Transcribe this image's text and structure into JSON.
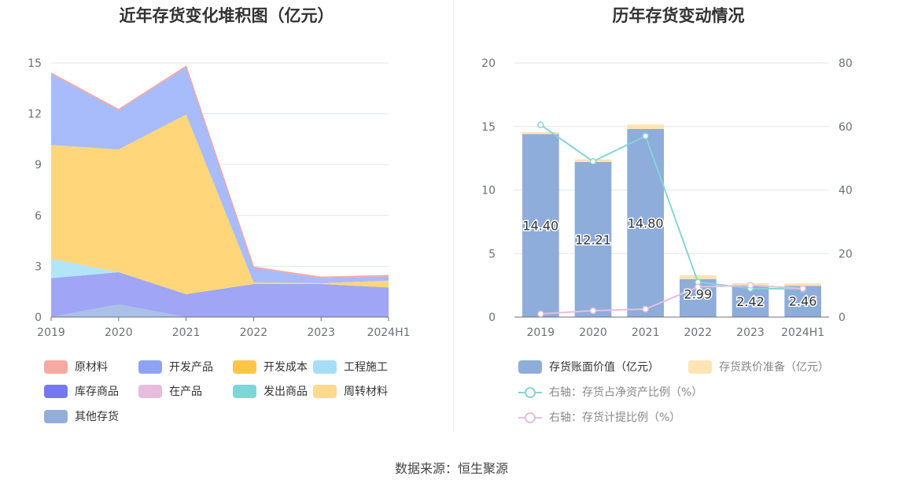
{
  "left": {
    "title": "近年存货变化堆积图（亿元）",
    "chart_data": {
      "type": "area",
      "stacked": true,
      "title": "近年存货变化堆积图（亿元）",
      "categories": [
        "2019",
        "2020",
        "2021",
        "2022",
        "2023",
        "2024H1"
      ],
      "yticks": [
        "0",
        "3",
        "6",
        "9",
        "12",
        "15"
      ],
      "ylim": [
        0,
        15
      ],
      "grid": true,
      "legend_position": "bottom",
      "series": [
        {
          "name": "其他存货",
          "color": "#a9c1e6",
          "values": [
            0,
            0.75,
            0,
            0,
            0,
            0
          ]
        },
        {
          "name": "库存商品",
          "color": "#a0a6f5",
          "values": [
            2.3,
            1.9,
            1.35,
            1.95,
            1.95,
            1.75
          ]
        },
        {
          "name": "在产品",
          "color": "#e8c4de",
          "values": [
            0,
            0,
            0,
            0,
            0,
            0
          ]
        },
        {
          "name": "发出商品",
          "color": "#93dadb",
          "values": [
            0,
            0,
            0,
            0,
            0,
            0
          ]
        },
        {
          "name": "工程施工",
          "color": "#b3e5f9",
          "values": [
            1.15,
            0,
            0,
            0,
            0,
            0
          ]
        },
        {
          "name": "开发成本",
          "color": "#ffd67a",
          "values": [
            6.7,
            7.25,
            10.6,
            0.1,
            0.05,
            0.4
          ]
        },
        {
          "name": "周转材料",
          "color": "#ffe0a3",
          "values": [
            0,
            0,
            0,
            0,
            0,
            0
          ]
        },
        {
          "name": "开发产品",
          "color": "#a8bbfb",
          "values": [
            4.2,
            2.3,
            2.8,
            0.85,
            0.3,
            0.25
          ]
        },
        {
          "name": "原材料",
          "color": "#f7a9a0",
          "values": [
            0.05,
            0.05,
            0.05,
            0.05,
            0.05,
            0.05
          ]
        }
      ],
      "legend_order": [
        "原材料",
        "开发产品",
        "开发成本",
        "工程施工",
        "库存商品",
        "在产品",
        "发出商品",
        "周转材料",
        "其他存货"
      ],
      "legend_colors": [
        "#f7a9a0",
        "#8ea3f6",
        "#ffc54a",
        "#a6def8",
        "#7678ef",
        "#e8bcdc",
        "#7fd6d6",
        "#ffd98e",
        "#92aedb"
      ]
    }
  },
  "right": {
    "title": "历年存货变动情况",
    "chart_data": {
      "type": "bar",
      "title": "历年存货变动情况",
      "categories": [
        "2019",
        "2020",
        "2021",
        "2022",
        "2023",
        "2024H1"
      ],
      "yticks_left": [
        "0",
        "5",
        "10",
        "15",
        "20"
      ],
      "yticks_right": [
        "0",
        "20",
        "40",
        "60",
        "80"
      ],
      "ylim_left": [
        0,
        20
      ],
      "ylim_right": [
        0,
        80
      ],
      "grid": true,
      "legend_position": "bottom",
      "series": [
        {
          "name": "存货账面价值（亿元）",
          "kind": "bar",
          "color": "#8eaddb",
          "values": [
            14.4,
            12.21,
            14.8,
            2.99,
            2.42,
            2.46
          ],
          "labels": [
            "14.40",
            "12.21",
            "14.80",
            "2.99",
            "2.42",
            "2.46"
          ]
        },
        {
          "name": "存货跌价准备（亿元）",
          "kind": "bar",
          "color": "#ffe4b3",
          "values": [
            0.15,
            0.2,
            0.35,
            0.3,
            0.25,
            0.2
          ]
        },
        {
          "name": "右轴：存货占净资产比例（%）",
          "kind": "line",
          "axis": "right",
          "color": "#87d4d6",
          "values": [
            60.5,
            49,
            57,
            11,
            9,
            8.8
          ]
        },
        {
          "name": "右轴：存货计提比例（%）",
          "kind": "line",
          "axis": "right",
          "color": "#e6bfde",
          "values": [
            1,
            2,
            2.5,
            9.5,
            10,
            9
          ]
        }
      ]
    }
  },
  "source": "数据来源：恒生聚源"
}
